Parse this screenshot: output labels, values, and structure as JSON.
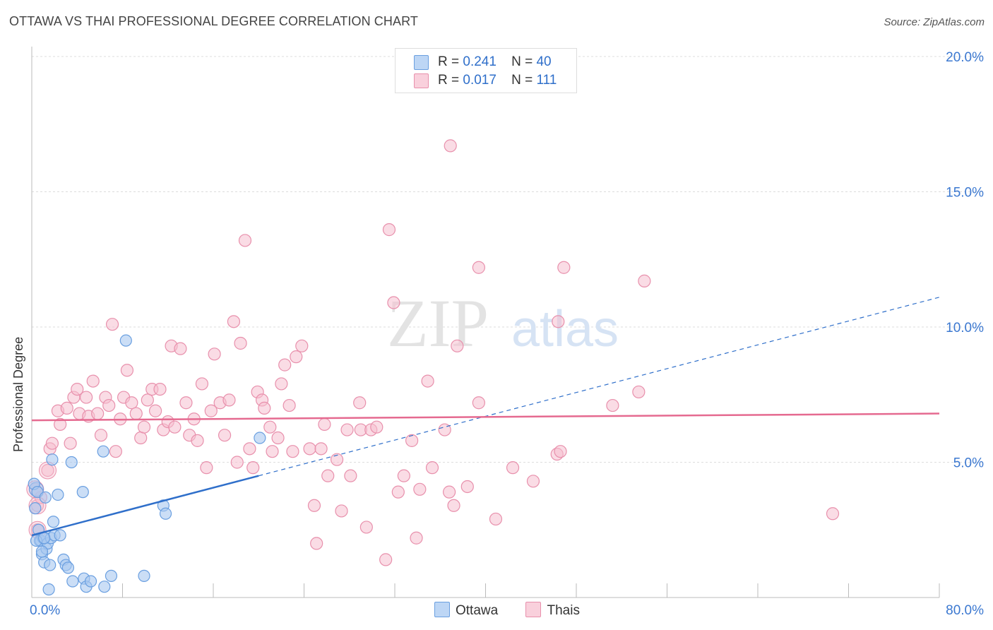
{
  "title": "OTTAWA VS THAI PROFESSIONAL DEGREE CORRELATION CHART",
  "source": "Source: ZipAtlas.com",
  "watermark": {
    "zip": "ZIP",
    "atlas": "atlas"
  },
  "legend": {
    "ottawa": {
      "r_label": "R =",
      "r_value": "0.241",
      "n_label": "N =",
      "n_value": "40"
    },
    "thais": {
      "r_label": "R =",
      "r_value": "0.017",
      "n_label": "N =",
      "n_value": "111"
    }
  },
  "bottom_legend": {
    "ottawa": "Ottawa",
    "thais": "Thais"
  },
  "colors": {
    "ottawa_fill": "#a8c8f0",
    "ottawa_stroke": "#6a9fe0",
    "ottawa_line": "#2f6fca",
    "thais_fill": "#f6c0d0",
    "thais_stroke": "#e890ac",
    "thais_line": "#e56a90",
    "axis_label": "#3b78d0",
    "grid": "#dddddd"
  },
  "chart_data": {
    "type": "scatter",
    "title": "OTTAWA VS THAI PROFESSIONAL DEGREE CORRELATION CHART",
    "xlabel": "",
    "ylabel": "Professional Degree",
    "xlim": [
      0,
      80
    ],
    "ylim": [
      0,
      20.5
    ],
    "x_tick_labels": [
      "0.0%",
      "80.0%"
    ],
    "y_ticks": [
      5,
      10,
      15,
      20
    ],
    "y_tick_labels": [
      "5.0%",
      "10.0%",
      "15.0%",
      "20.0%"
    ],
    "grid": "horizontal dashed",
    "legend_position": "top-center",
    "series": [
      {
        "name": "Ottawa",
        "r": 0.241,
        "n": 40,
        "trend": {
          "x0": 0,
          "y0": 2.3,
          "x1": 20,
          "y1": 4.5,
          "x_dash_end": 80,
          "y_dash_end": 11.1
        },
        "points": [
          [
            0.2,
            4.2
          ],
          [
            0.3,
            3.3
          ],
          [
            0.5,
            3.9
          ],
          [
            0.6,
            2.5
          ],
          [
            0.7,
            2.1
          ],
          [
            0.8,
            2.1
          ],
          [
            0.9,
            1.6
          ],
          [
            1.0,
            2.2
          ],
          [
            1.1,
            1.3
          ],
          [
            1.2,
            3.7
          ],
          [
            1.3,
            1.8
          ],
          [
            1.4,
            2.0
          ],
          [
            1.5,
            0.3
          ],
          [
            1.6,
            1.2
          ],
          [
            1.7,
            2.2
          ],
          [
            1.8,
            5.1
          ],
          [
            1.9,
            2.8
          ],
          [
            2.0,
            2.3
          ],
          [
            2.3,
            3.8
          ],
          [
            2.5,
            2.3
          ],
          [
            2.8,
            1.4
          ],
          [
            3.0,
            1.2
          ],
          [
            3.2,
            1.1
          ],
          [
            3.5,
            5.0
          ],
          [
            3.6,
            0.6
          ],
          [
            4.5,
            3.9
          ],
          [
            4.6,
            0.7
          ],
          [
            4.8,
            0.4
          ],
          [
            5.2,
            0.6
          ],
          [
            6.3,
            5.4
          ],
          [
            6.4,
            0.4
          ],
          [
            7.0,
            0.8
          ],
          [
            8.3,
            9.5
          ],
          [
            9.9,
            0.8
          ],
          [
            11.6,
            3.4
          ],
          [
            11.8,
            3.1
          ],
          [
            20.1,
            5.9
          ],
          [
            0.4,
            2.1
          ],
          [
            0.9,
            1.7
          ],
          [
            1.1,
            2.2
          ]
        ],
        "bubble": [
          [
            0.4,
            4.0
          ]
        ]
      },
      {
        "name": "Thais",
        "r": 0.017,
        "n": 111,
        "trend": {
          "x0": 0,
          "y0": 6.55,
          "x1": 80,
          "y1": 6.8
        },
        "points": [
          [
            2.3,
            6.9
          ],
          [
            2.5,
            6.4
          ],
          [
            3.1,
            7.0
          ],
          [
            3.4,
            5.7
          ],
          [
            3.7,
            7.4
          ],
          [
            4.0,
            7.7
          ],
          [
            4.2,
            6.8
          ],
          [
            4.8,
            7.4
          ],
          [
            5.0,
            6.7
          ],
          [
            5.4,
            8.0
          ],
          [
            5.8,
            6.8
          ],
          [
            6.1,
            6.0
          ],
          [
            6.5,
            7.4
          ],
          [
            6.8,
            7.1
          ],
          [
            7.1,
            10.1
          ],
          [
            7.4,
            5.4
          ],
          [
            7.8,
            6.6
          ],
          [
            8.1,
            7.4
          ],
          [
            8.4,
            8.4
          ],
          [
            8.8,
            7.2
          ],
          [
            9.2,
            6.8
          ],
          [
            9.6,
            5.9
          ],
          [
            9.9,
            6.3
          ],
          [
            10.2,
            7.3
          ],
          [
            10.6,
            7.7
          ],
          [
            10.9,
            6.9
          ],
          [
            11.3,
            7.7
          ],
          [
            11.6,
            6.2
          ],
          [
            12.0,
            6.5
          ],
          [
            12.3,
            9.3
          ],
          [
            12.6,
            6.3
          ],
          [
            13.1,
            9.2
          ],
          [
            13.6,
            7.2
          ],
          [
            13.9,
            6.0
          ],
          [
            14.3,
            6.6
          ],
          [
            14.6,
            5.8
          ],
          [
            15.0,
            7.9
          ],
          [
            15.4,
            4.8
          ],
          [
            15.8,
            6.9
          ],
          [
            16.1,
            9.0
          ],
          [
            16.6,
            7.2
          ],
          [
            17.0,
            6.0
          ],
          [
            17.4,
            7.3
          ],
          [
            17.8,
            10.2
          ],
          [
            18.1,
            5.0
          ],
          [
            18.4,
            9.4
          ],
          [
            18.8,
            13.2
          ],
          [
            19.2,
            5.5
          ],
          [
            19.5,
            4.8
          ],
          [
            19.9,
            7.6
          ],
          [
            20.3,
            7.3
          ],
          [
            20.5,
            7.0
          ],
          [
            21.0,
            6.3
          ],
          [
            21.2,
            5.4
          ],
          [
            21.7,
            5.9
          ],
          [
            22.0,
            7.9
          ],
          [
            22.3,
            8.6
          ],
          [
            22.7,
            7.1
          ],
          [
            23.0,
            5.4
          ],
          [
            23.3,
            8.9
          ],
          [
            23.8,
            9.3
          ],
          [
            24.5,
            5.5
          ],
          [
            24.9,
            3.4
          ],
          [
            25.1,
            2.0
          ],
          [
            25.5,
            5.5
          ],
          [
            25.8,
            6.4
          ],
          [
            26.1,
            4.5
          ],
          [
            26.9,
            5.1
          ],
          [
            27.3,
            3.2
          ],
          [
            27.8,
            6.2
          ],
          [
            28.1,
            4.5
          ],
          [
            28.9,
            7.2
          ],
          [
            29.0,
            6.2
          ],
          [
            29.5,
            2.6
          ],
          [
            29.9,
            6.2
          ],
          [
            30.4,
            6.3
          ],
          [
            31.5,
            13.6
          ],
          [
            31.9,
            10.9
          ],
          [
            31.2,
            1.4
          ],
          [
            32.3,
            3.9
          ],
          [
            32.8,
            4.5
          ],
          [
            33.5,
            5.8
          ],
          [
            33.9,
            2.2
          ],
          [
            34.2,
            4.0
          ],
          [
            34.9,
            8.0
          ],
          [
            35.3,
            4.8
          ],
          [
            36.4,
            6.2
          ],
          [
            36.8,
            3.9
          ],
          [
            37.2,
            3.4
          ],
          [
            36.9,
            16.7
          ],
          [
            37.5,
            9.3
          ],
          [
            38.4,
            4.1
          ],
          [
            39.4,
            12.2
          ],
          [
            39.4,
            7.2
          ],
          [
            40.9,
            2.9
          ],
          [
            42.4,
            4.8
          ],
          [
            44.2,
            4.3
          ],
          [
            46.3,
            5.3
          ],
          [
            46.6,
            5.4
          ],
          [
            46.9,
            12.2
          ],
          [
            46.4,
            10.2
          ],
          [
            51.2,
            7.1
          ],
          [
            53.5,
            7.6
          ],
          [
            54.0,
            11.7
          ],
          [
            70.6,
            3.1
          ],
          [
            0.3,
            4.0
          ],
          [
            0.5,
            3.4
          ],
          [
            0.5,
            2.5
          ],
          [
            1.4,
            4.7
          ],
          [
            1.6,
            5.5
          ],
          [
            1.8,
            5.7
          ],
          [
            0.8,
            3.7
          ]
        ],
        "bubbles": [
          [
            0.3,
            4.0
          ],
          [
            0.5,
            3.4
          ],
          [
            0.5,
            2.5
          ],
          [
            1.4,
            4.7
          ]
        ]
      }
    ]
  }
}
